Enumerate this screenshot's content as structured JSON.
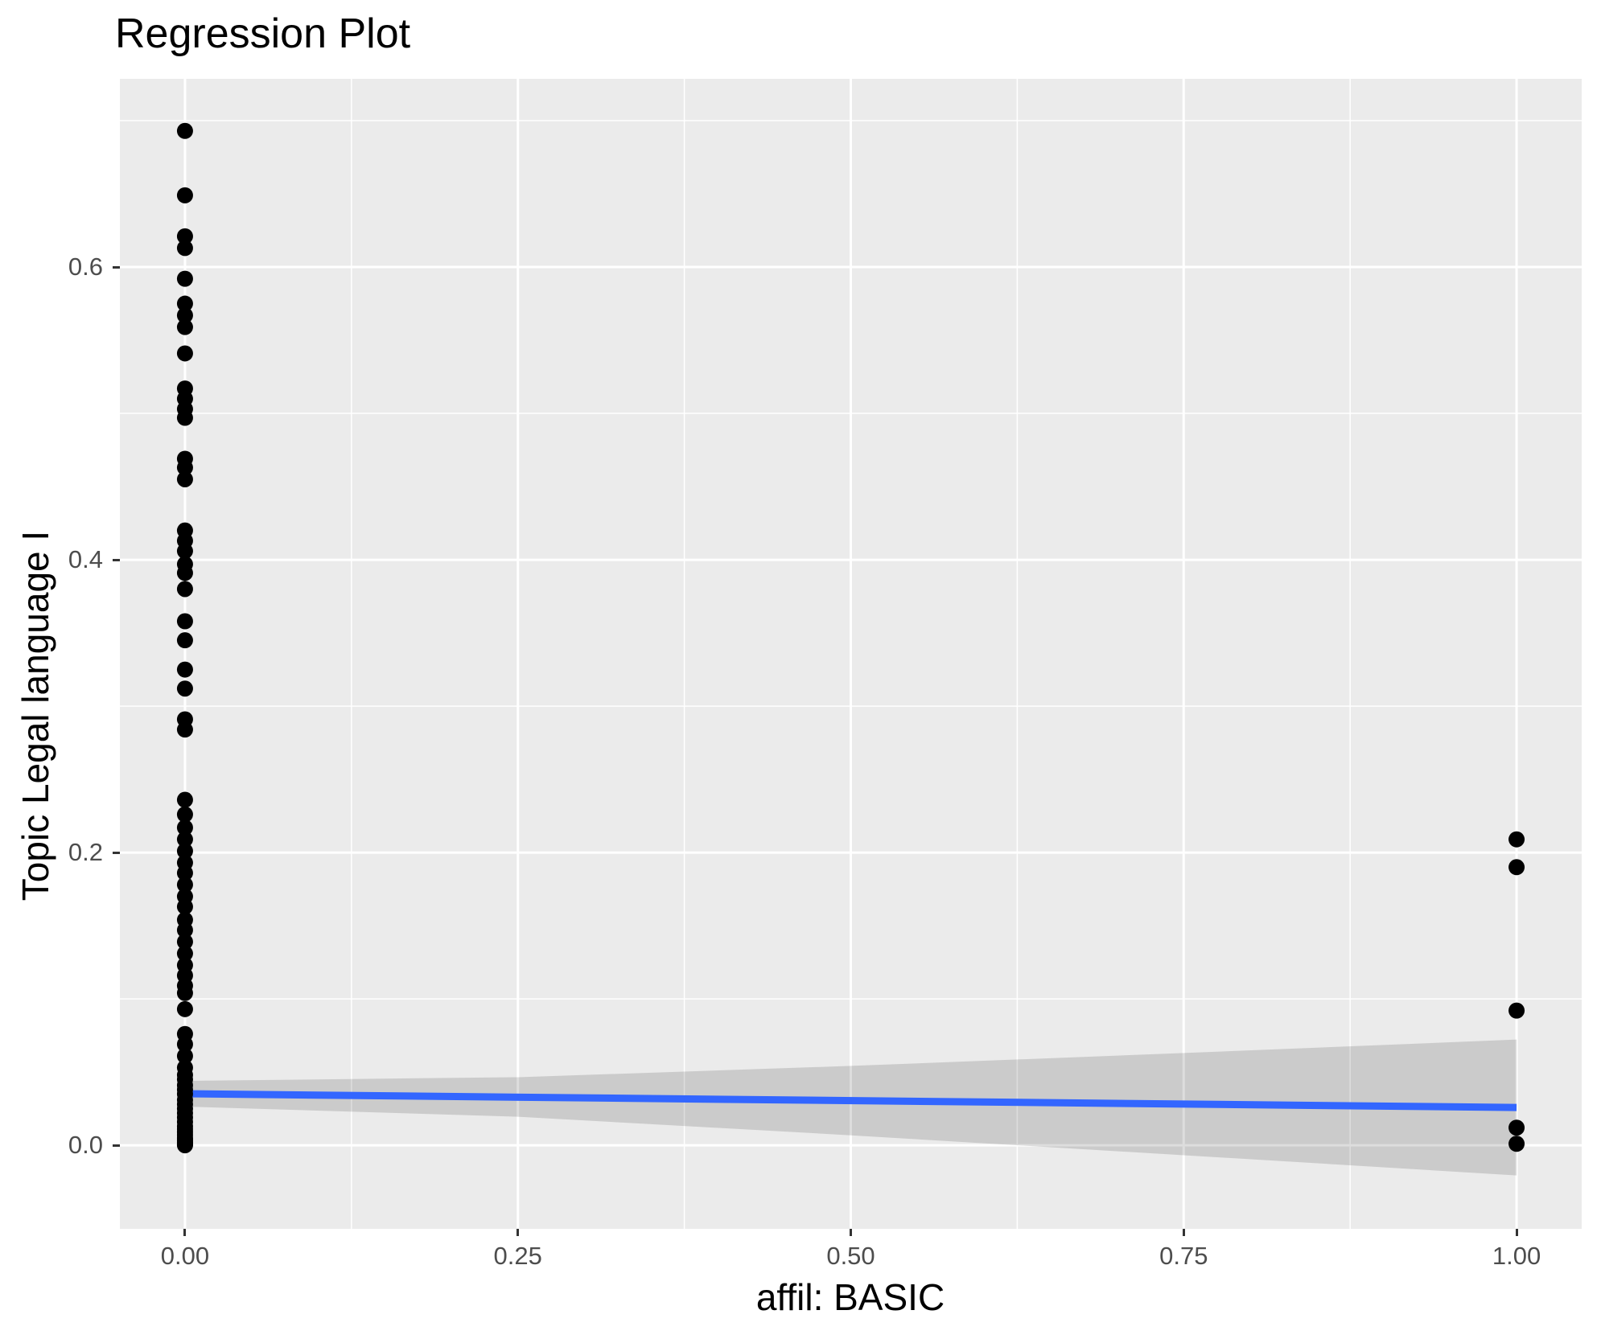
{
  "page": {
    "background": "#FFFFFF"
  },
  "chart_data": {
    "type": "scatter",
    "title": "Regression Plot",
    "xlabel": "affil: BASIC",
    "ylabel": "Topic Legal language I",
    "legend": "none",
    "grid": "on",
    "x_axis": {
      "tick_labels": [
        "0.00",
        "0.25",
        "0.50",
        "0.75",
        "1.00"
      ],
      "tick_values": [
        0,
        0.25,
        0.5,
        0.75,
        1
      ],
      "minor_values": [
        0.125,
        0.375,
        0.625,
        0.875
      ],
      "lim": [
        -0.0489,
        1.0489
      ]
    },
    "y_axis": {
      "tick_labels": [
        "0.0",
        "0.2",
        "0.4",
        "0.6"
      ],
      "tick_values": [
        0,
        0.2,
        0.4,
        0.6
      ],
      "minor_values": [
        0.1,
        0.3,
        0.5,
        0.7
      ],
      "lim": [
        -0.0571,
        0.7286
      ]
    },
    "style": {
      "panel_bg": "#EBEBEB",
      "grid_color": "#FFFFFF",
      "point_color": "#000000",
      "line_color": "#3366FF",
      "band_color": "#000000",
      "band_opacity": 0.135,
      "tick_text_color": "#4D4D4D",
      "tick_mark_color": "#333333",
      "point_radius": 10,
      "line_width": 9
    },
    "points": [
      {
        "x": 0,
        "values": [
          0.693,
          0.649,
          0.621,
          0.613,
          0.592,
          0.575,
          0.567,
          0.559,
          0.541,
          0.517,
          0.51,
          0.503,
          0.497,
          0.469,
          0.463,
          0.455,
          0.42,
          0.413,
          0.406,
          0.397,
          0.391,
          0.38,
          0.358,
          0.345,
          0.325,
          0.312,
          0.291,
          0.284,
          0.236,
          0.226,
          0.217,
          0.209,
          0.201,
          0.193,
          0.186,
          0.178,
          0.17,
          0.163,
          0.154,
          0.147,
          0.139,
          0.131,
          0.123,
          0.116,
          0.109,
          0.104,
          0.093,
          0.076,
          0.069,
          0.061,
          0.053,
          0.048,
          0.045,
          0.041,
          0.038,
          0.035,
          0.031,
          0.028,
          0.025,
          0.022,
          0.019,
          0.016,
          0.013,
          0.011,
          0.009,
          0.007,
          0.005,
          0.004,
          0.003,
          0.002,
          0.001,
          0.0005,
          0
        ]
      },
      {
        "x": 1,
        "values": [
          0.209,
          0.19,
          0.092,
          0.012,
          0.001
        ]
      }
    ],
    "regression_line": {
      "x": [
        0,
        1
      ],
      "y": [
        0.0352,
        0.0258
      ]
    },
    "confidence_band": {
      "x": [
        0,
        0.25,
        0.5,
        0.75,
        1
      ],
      "upper": [
        0.044,
        0.0465,
        0.0542,
        0.063,
        0.0722
      ],
      "lower": [
        0.0264,
        0.0195,
        0.0068,
        -0.0068,
        -0.0206
      ]
    }
  }
}
